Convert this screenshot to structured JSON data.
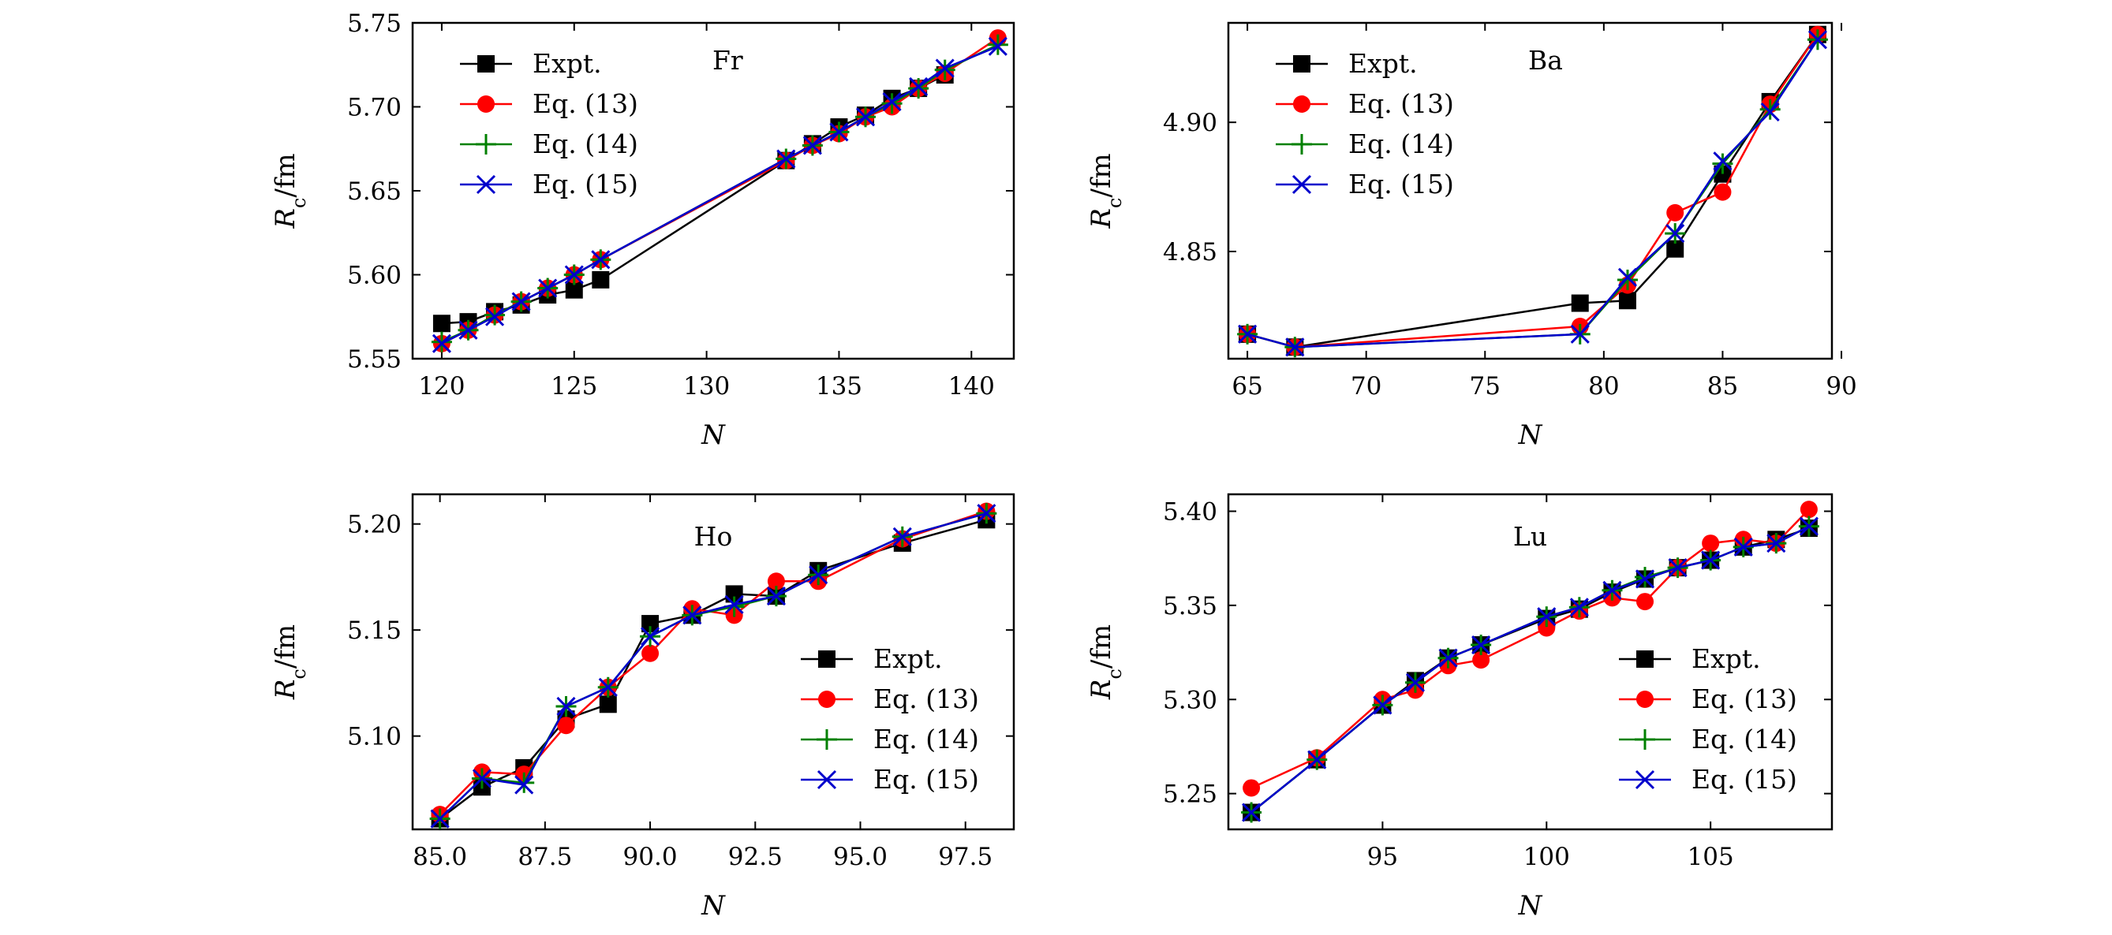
{
  "figure": {
    "xlabel": "N",
    "ylabel_main": "R",
    "ylabel_sub": "c",
    "ylabel_unit": "/fm",
    "series_styles": [
      {
        "name": "Expt.",
        "color": "#000000",
        "marker": "square"
      },
      {
        "name": "Eq. (13)",
        "color": "#ff0000",
        "marker": "circle"
      },
      {
        "name": "Eq. (14)",
        "color": "#008000",
        "marker": "plus"
      },
      {
        "name": "Eq. (15)",
        "color": "#0000cc",
        "marker": "x"
      }
    ]
  },
  "chart_data": [
    {
      "type": "line",
      "annotation": "Fr",
      "legend_position": "top-left",
      "xlabel": "N",
      "ylabel": "Rc/fm",
      "xlim": [
        118.9,
        141.6
      ],
      "ylim": [
        5.55,
        5.75
      ],
      "xticks": [
        120,
        125,
        130,
        135,
        140
      ],
      "xtick_labels": [
        "120",
        "125",
        "130",
        "135",
        "140"
      ],
      "yticks": [
        5.55,
        5.6,
        5.65,
        5.7,
        5.75
      ],
      "ytick_labels": [
        "5.55",
        "5.60",
        "5.65",
        "5.70",
        "5.75"
      ],
      "x": [
        120,
        121,
        122,
        123,
        124,
        125,
        126,
        133,
        134,
        135,
        136,
        137,
        138,
        139,
        141
      ],
      "series": [
        {
          "name": "Expt.",
          "x": [
            120,
            121,
            122,
            123,
            124,
            125,
            126,
            133,
            134,
            135,
            136,
            137,
            138,
            139
          ],
          "values": [
            5.571,
            5.572,
            5.578,
            5.582,
            5.588,
            5.591,
            5.597,
            5.668,
            5.678,
            5.688,
            5.695,
            5.705,
            5.711,
            5.719
          ]
        },
        {
          "name": "Eq. (13)",
          "values": [
            5.559,
            5.567,
            5.576,
            5.584,
            5.592,
            5.6,
            5.609,
            5.668,
            5.677,
            5.684,
            5.694,
            5.7,
            5.711,
            5.72,
            5.741
          ]
        },
        {
          "name": "Eq. (14)",
          "values": [
            5.56,
            5.567,
            5.576,
            5.584,
            5.592,
            5.6,
            5.609,
            5.669,
            5.677,
            5.685,
            5.694,
            5.702,
            5.711,
            5.722,
            5.737
          ]
        },
        {
          "name": "Eq. (15)",
          "values": [
            5.559,
            5.567,
            5.575,
            5.584,
            5.592,
            5.6,
            5.609,
            5.669,
            5.677,
            5.685,
            5.694,
            5.703,
            5.712,
            5.723,
            5.736
          ]
        }
      ]
    },
    {
      "type": "line",
      "annotation": "Ba",
      "legend_position": "top-left",
      "xlabel": "N",
      "ylabel": "Rc/fm",
      "xlim": [
        64.2,
        89.6
      ],
      "ylim": [
        4.8085,
        4.9385
      ],
      "xticks": [
        65,
        70,
        75,
        80,
        85,
        90
      ],
      "xtick_labels": [
        "65",
        "70",
        "75",
        "80",
        "85",
        "90"
      ],
      "yticks": [
        4.85,
        4.9
      ],
      "ytick_labels": [
        "4.85",
        "4.90"
      ],
      "x": [
        65,
        67,
        79,
        81,
        83,
        85,
        87,
        89
      ],
      "series": [
        {
          "name": "Expt.",
          "values": [
            4.818,
            4.813,
            4.83,
            4.831,
            4.851,
            4.88,
            4.908,
            4.934
          ]
        },
        {
          "name": "Eq. (13)",
          "values": [
            4.818,
            4.813,
            4.821,
            4.837,
            4.865,
            4.873,
            4.907,
            4.934
          ]
        },
        {
          "name": "Eq. (14)",
          "values": [
            4.818,
            4.813,
            4.818,
            4.839,
            4.857,
            4.884,
            4.905,
            4.932
          ]
        },
        {
          "name": "Eq. (15)",
          "values": [
            4.818,
            4.813,
            4.818,
            4.84,
            4.857,
            4.885,
            4.904,
            4.932
          ]
        }
      ]
    },
    {
      "type": "line",
      "annotation": "Ho",
      "legend_position": "bottom-right",
      "xlabel": "N",
      "ylabel": "Rc/fm",
      "xlim": [
        84.35,
        98.65
      ],
      "ylim": [
        5.056,
        5.214
      ],
      "xticks": [
        85,
        87.5,
        90,
        92.5,
        95,
        97.5
      ],
      "xtick_labels": [
        "85.0",
        "87.5",
        "90.0",
        "92.5",
        "95.0",
        "97.5"
      ],
      "yticks": [
        5.1,
        5.15,
        5.2
      ],
      "ytick_labels": [
        "5.10",
        "5.15",
        "5.20"
      ],
      "x": [
        85,
        86,
        87,
        88,
        89,
        90,
        91,
        92,
        93,
        94,
        96,
        98
      ],
      "series": [
        {
          "name": "Expt.",
          "values": [
            5.061,
            5.076,
            5.085,
            5.108,
            5.115,
            5.153,
            5.157,
            5.167,
            5.166,
            5.178,
            5.191,
            5.202
          ]
        },
        {
          "name": "Eq. (13)",
          "values": [
            5.063,
            5.083,
            5.082,
            5.105,
            5.123,
            5.139,
            5.16,
            5.157,
            5.173,
            5.173,
            5.193,
            5.206
          ]
        },
        {
          "name": "Eq. (14)",
          "values": [
            5.061,
            5.08,
            5.078,
            5.114,
            5.123,
            5.147,
            5.157,
            5.161,
            5.166,
            5.176,
            5.194,
            5.205
          ]
        },
        {
          "name": "Eq. (15)",
          "values": [
            5.061,
            5.08,
            5.077,
            5.114,
            5.123,
            5.147,
            5.157,
            5.162,
            5.166,
            5.176,
            5.194,
            5.205
          ]
        }
      ]
    },
    {
      "type": "line",
      "annotation": "Lu",
      "legend_position": "bottom-right",
      "xlabel": "N",
      "ylabel": "Rc/fm",
      "xlim": [
        90.3,
        108.7
      ],
      "ylim": [
        5.231,
        5.409
      ],
      "xticks": [
        95,
        100,
        105
      ],
      "xtick_labels": [
        "95",
        "100",
        "105"
      ],
      "yticks": [
        5.25,
        5.3,
        5.35,
        5.4
      ],
      "ytick_labels": [
        "5.25",
        "5.30",
        "5.35",
        "5.40"
      ],
      "x": [
        91,
        93,
        95,
        96,
        97,
        98,
        100,
        101,
        102,
        103,
        104,
        105,
        106,
        107,
        108
      ],
      "series": [
        {
          "name": "Expt.",
          "values": [
            5.24,
            5.268,
            5.297,
            5.31,
            5.322,
            5.329,
            5.343,
            5.348,
            5.357,
            5.364,
            5.37,
            5.374,
            5.381,
            5.385,
            5.391
          ]
        },
        {
          "name": "Eq. (13)",
          "values": [
            5.253,
            5.269,
            5.3,
            5.305,
            5.318,
            5.321,
            5.338,
            5.347,
            5.354,
            5.352,
            5.37,
            5.383,
            5.385,
            5.383,
            5.401
          ]
        },
        {
          "name": "Eq. (14)",
          "values": [
            5.24,
            5.268,
            5.297,
            5.309,
            5.322,
            5.329,
            5.344,
            5.349,
            5.358,
            5.365,
            5.37,
            5.374,
            5.381,
            5.383,
            5.392
          ]
        },
        {
          "name": "Eq. (15)",
          "values": [
            5.24,
            5.268,
            5.297,
            5.309,
            5.322,
            5.329,
            5.344,
            5.349,
            5.358,
            5.364,
            5.37,
            5.374,
            5.381,
            5.383,
            5.392
          ]
        }
      ]
    }
  ]
}
